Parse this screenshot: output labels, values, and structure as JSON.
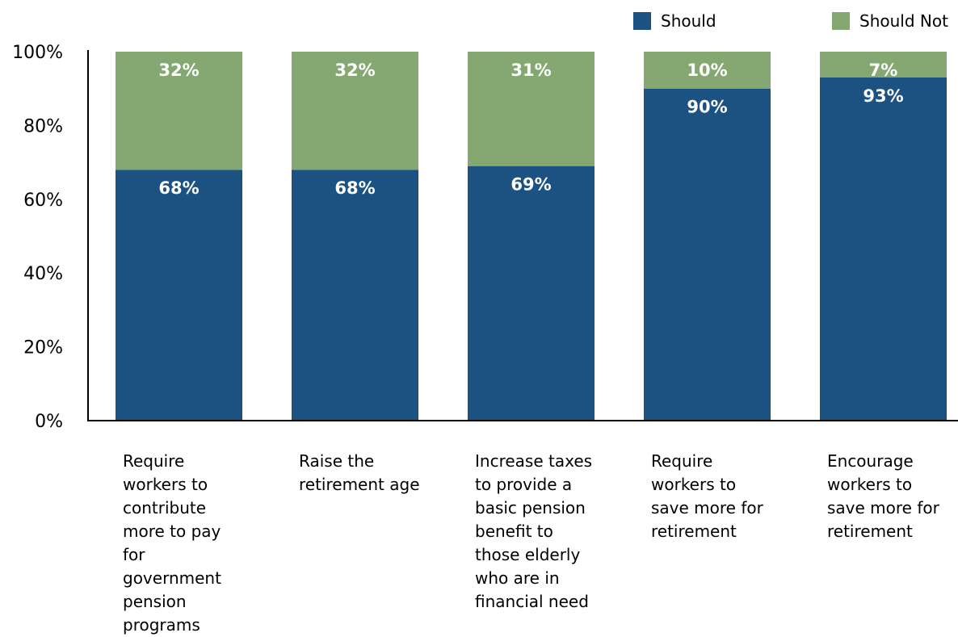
{
  "chart_data": {
    "type": "bar",
    "stacked": true,
    "categories": [
      "Require workers to contribute more to pay for government pension programs",
      "Raise the retirement age",
      "Increase taxes to provide a basic pension benefit to those elderly who are in financial need",
      "Require workers to save more for retirement",
      "Encourage workers to save more for retirement"
    ],
    "category_lines": [
      [
        "Require",
        "workers to",
        "contribute",
        "more to pay for",
        "government",
        "pension",
        "programs"
      ],
      [
        "Raise the",
        "retirement age"
      ],
      [
        "Increase taxes",
        "to provide a",
        "basic pension",
        "benefit to",
        "those elderly",
        "who are in",
        "financial need"
      ],
      [
        "Require",
        "workers to",
        "save more for",
        "retirement"
      ],
      [
        "Encourage",
        "workers to",
        "save more for",
        "retirement"
      ]
    ],
    "series": [
      {
        "name": "Should",
        "color": "#1b5282",
        "values": [
          68,
          68,
          69,
          90,
          93
        ],
        "labels": [
          "68%",
          "68%",
          "69%",
          "90%",
          "93%"
        ]
      },
      {
        "name": "Should Not",
        "color": "#85a872",
        "values": [
          32,
          32,
          31,
          10,
          7
        ],
        "labels": [
          "32%",
          "32%",
          "31%",
          "10%",
          "7%"
        ]
      }
    ],
    "y_ticks": [
      "0%",
      "20%",
      "40%",
      "60%",
      "80%",
      "100%"
    ],
    "ylim": [
      0,
      100
    ],
    "grid": false,
    "legend_position": "top-right"
  }
}
